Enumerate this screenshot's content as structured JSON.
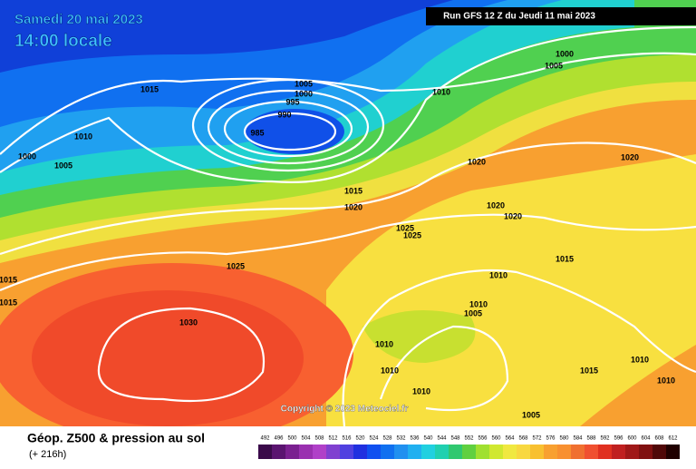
{
  "header": {
    "date": "Samedi 20 mai 2023",
    "time": "14:00 locale",
    "run": "Run GFS 12 Z du Jeudi 11 mai 2023"
  },
  "isobar_labels": [
    "1005",
    "1000",
    "995",
    "990",
    "985",
    "1015",
    "1010",
    "1005",
    "1000",
    "1010",
    "1000",
    "1005",
    "1020",
    "1020",
    "1015",
    "1020",
    "1025",
    "1025",
    "1020",
    "1020",
    "1025",
    "1015",
    "1010",
    "1010",
    "1005",
    "1030",
    "1010",
    "1010",
    "1015",
    "1010",
    "1010",
    "1005",
    "1010",
    "1015",
    "1015"
  ],
  "copyright": "Copyright © 2023 Meteociel.fr",
  "footer": {
    "title": "Géop. Z500 & pression au sol",
    "lead": "(+ 216h)"
  },
  "legend": {
    "scale_labels": [
      492,
      496,
      500,
      504,
      508,
      512,
      516,
      520,
      524,
      528,
      532,
      536,
      540,
      544,
      548,
      552,
      556,
      560,
      564,
      568,
      572,
      576,
      580,
      584,
      588,
      592,
      596,
      600,
      604,
      608,
      612
    ],
    "colors": [
      "#3a0a4a",
      "#5a1470",
      "#7a2090",
      "#9a30b0",
      "#b040c8",
      "#8040d0",
      "#5040e0",
      "#2030e0",
      "#1050f0",
      "#1070f0",
      "#2090f0",
      "#20b0f0",
      "#20d0e0",
      "#20d0b0",
      "#30c870",
      "#60d040",
      "#a0e030",
      "#d0e830",
      "#f0e840",
      "#f8d840",
      "#f8c030",
      "#f8a030",
      "#f89030",
      "#f07030",
      "#f05030",
      "#e03020",
      "#c02020",
      "#a01818",
      "#801010",
      "#500808",
      "#200000"
    ]
  }
}
